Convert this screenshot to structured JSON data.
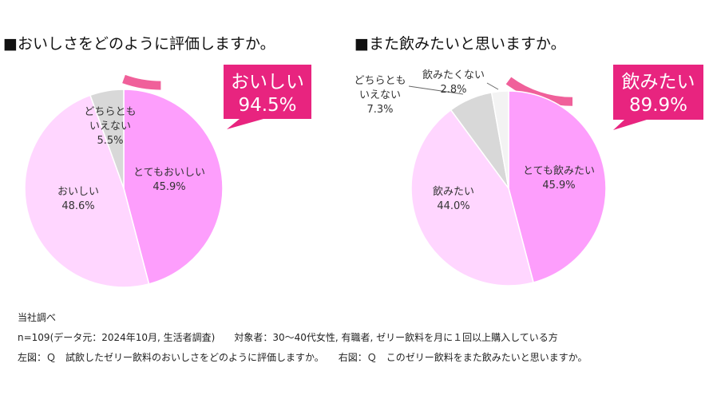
{
  "left_title": "■おいしさをどのように評価しますか。",
  "right_title": "■また飲みたいと思いますか。",
  "notes": {
    "source": "当社調べ",
    "sample": "n=109(データ元：2024年10月, 生活者調査)　　対象者：30～40代女性, 有職者, ゼリー飲料を月に１回以上購入している方",
    "questions": "左図：Ｑ　試飲したゼリー飲料のおいしさをどのように評価しますか。　　右図：Ｑ　このゼリー飲料をまた飲みたいと思いますか。"
  },
  "colors": {
    "ring": "#f0609a",
    "callout": "#e8247f",
    "dark_pink": "#fd9efc",
    "light_pink": "#ffd6ff",
    "gray": "#d8d8d8",
    "white_slice": "#f3f3f3"
  },
  "chart_data": [
    {
      "type": "pie",
      "title": "■おいしさをどのように評価しますか。",
      "callout": {
        "line1": "おいしい",
        "line2": "94.5%"
      },
      "ring_percent": 94.5,
      "slices": [
        {
          "label": "とてもおいしい",
          "value": 45.9,
          "display": "45.9%",
          "color": "#fd9efc"
        },
        {
          "label": "おいしい",
          "value": 48.6,
          "display": "48.6%",
          "color": "#ffd6ff"
        },
        {
          "label": "どちらとも\nいえない",
          "value": 5.5,
          "display": "5.5%",
          "color": "#d8d8d8"
        }
      ]
    },
    {
      "type": "pie",
      "title": "■また飲みたいと思いますか。",
      "callout": {
        "line1": "飲みたい",
        "line2": "89.9%"
      },
      "ring_percent": 89.9,
      "slices": [
        {
          "label": "とても飲みたい",
          "value": 45.9,
          "display": "45.9%",
          "color": "#fd9efc"
        },
        {
          "label": "飲みたい",
          "value": 44.0,
          "display": "44.0%",
          "color": "#ffd6ff"
        },
        {
          "label": "どちらとも\nいえない",
          "value": 7.3,
          "display": "7.3%",
          "color": "#d8d8d8"
        },
        {
          "label": "飲みたくない",
          "value": 2.8,
          "display": "2.8%",
          "color": "#f3f3f3"
        }
      ]
    }
  ]
}
